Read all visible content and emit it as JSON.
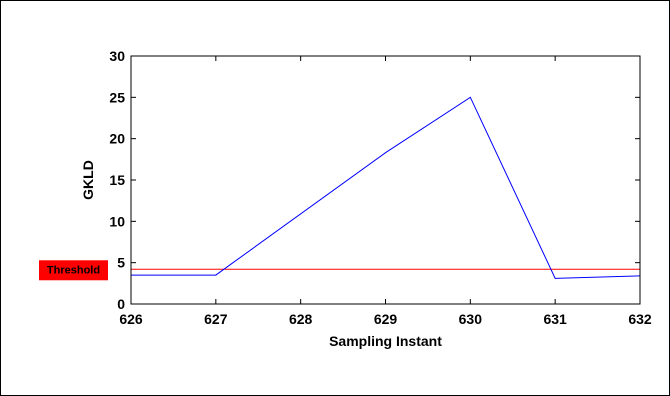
{
  "chart_data": {
    "type": "line",
    "title": "",
    "xlabel": "Sampling Instant",
    "ylabel": "GKLD",
    "xlim": [
      626,
      632
    ],
    "ylim": [
      0,
      30
    ],
    "xticks": [
      626,
      627,
      628,
      629,
      630,
      631,
      632
    ],
    "yticks": [
      0,
      5,
      10,
      15,
      20,
      25,
      30
    ],
    "grid": false,
    "series": [
      {
        "color": "#0000ff",
        "x": [
          626,
          627,
          629,
          630,
          631,
          632
        ],
        "y": [
          3.5,
          3.5,
          18.3,
          25.0,
          3.1,
          3.4
        ]
      }
    ],
    "threshold": {
      "label": "Threshold",
      "value": 4.2,
      "color": "#ff0000",
      "label_bg": "#ff0000"
    }
  }
}
